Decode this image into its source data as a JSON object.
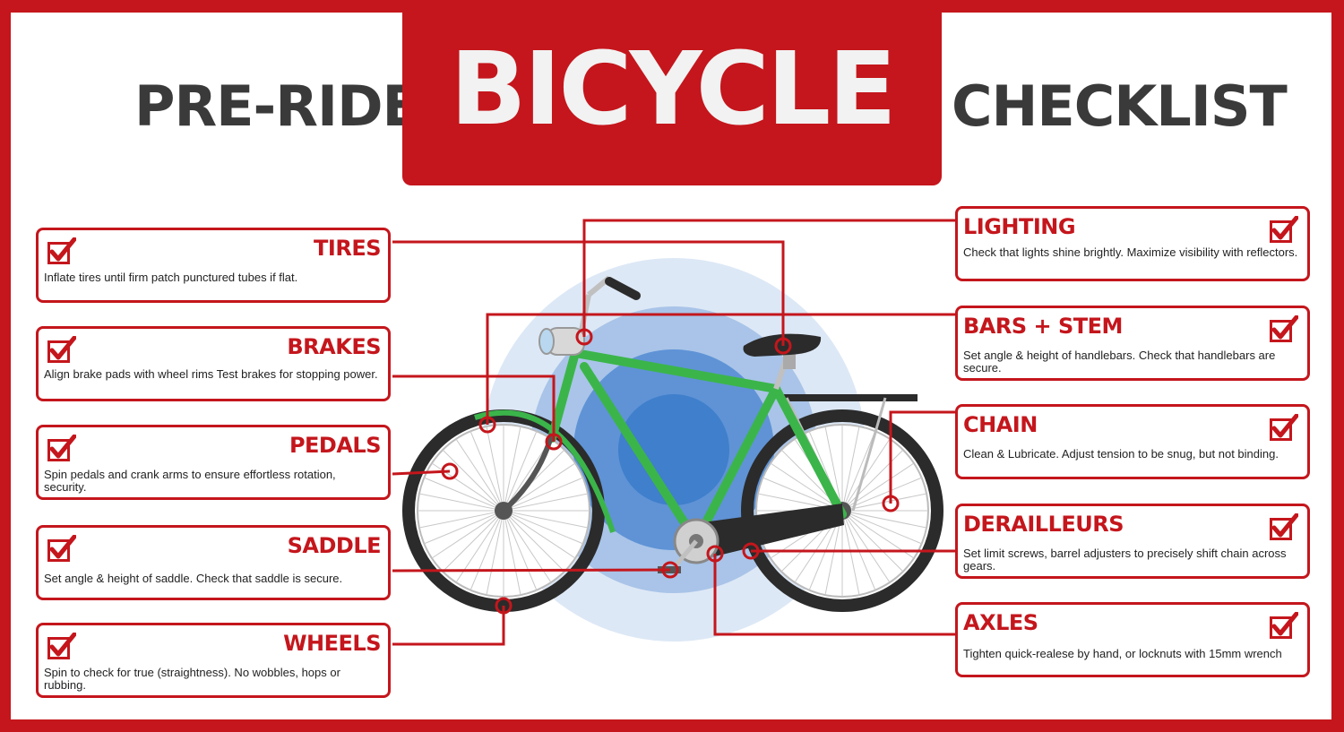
{
  "header": {
    "left": "PRE-RIDE",
    "main": "BICYCLE",
    "right": "CHECKLIST"
  },
  "left_items": [
    {
      "title": "TIRES",
      "desc": "Inflate tires until firm patch punctured tubes if flat."
    },
    {
      "title": "BRAKES",
      "desc": "Align brake pads with wheel rims Test brakes for stopping power."
    },
    {
      "title": "PEDALS",
      "desc": "Spin pedals and crank arms to ensure effortless rotation, security."
    },
    {
      "title": "SADDLE",
      "desc": "Set angle & height of saddle. Check that saddle is secure."
    },
    {
      "title": "WHEELS",
      "desc": "Spin to check for true (straightness). No wobbles, hops or rubbing."
    }
  ],
  "right_items": [
    {
      "title": "LIGHTING",
      "desc": "Check that lights shine brightly. Maximize visibility with reflectors."
    },
    {
      "title": "BARS + STEM",
      "desc": "Set angle & height of handlebars. Check that handlebars are secure."
    },
    {
      "title": "CHAIN",
      "desc": "Clean & Lubricate. Adjust tension to be snug, but not binding."
    },
    {
      "title": "DERAILLEURS",
      "desc": "Set limit screws, barrel adjusters to precisely shift chain across gears."
    },
    {
      "title": "AXLES",
      "desc": "Tighten quick-realese by hand, or locknuts with 15mm wrench"
    }
  ],
  "colors": {
    "brand_red": "#c4161c",
    "title_gray": "#3a3a3a",
    "frame_green": "#3bb54a"
  }
}
